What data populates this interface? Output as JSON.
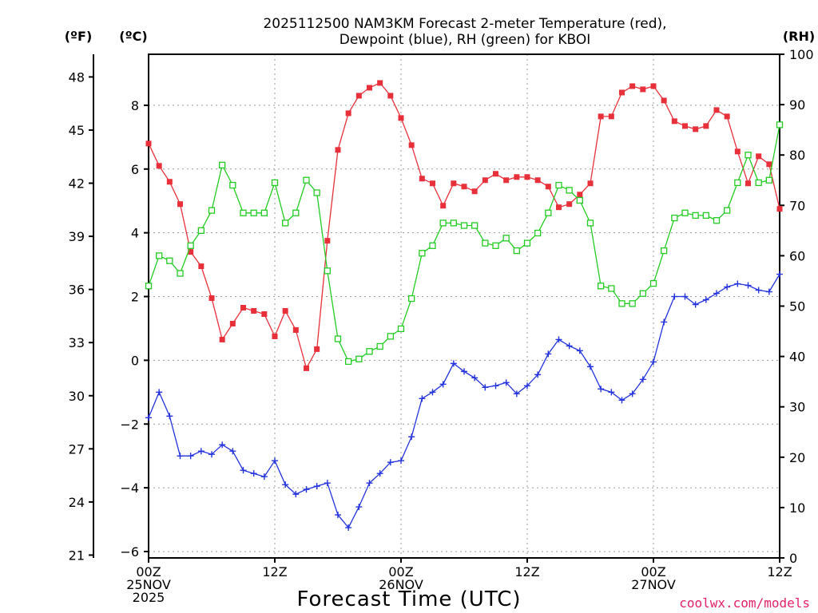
{
  "chart_data": {
    "type": "line",
    "title_lines": [
      "2025112500 NAM3KM Forecast 2-meter Temperature (red),",
      "Dewpoint (blue), RH (green) for KBOI"
    ],
    "xlabel": "Forecast Time (UTC)",
    "credit": "coolwx.com/models",
    "units": {
      "fahrenheit": "(ºF)",
      "celsius": "(ºC)",
      "rh": "(RH)"
    },
    "x_range": [
      0,
      60
    ],
    "x_ticks": [
      {
        "x": 0,
        "lines": [
          "00Z",
          "25NOV",
          "2025"
        ]
      },
      {
        "x": 12,
        "lines": [
          "12Z"
        ]
      },
      {
        "x": 24,
        "lines": [
          "00Z",
          "26NOV"
        ]
      },
      {
        "x": 36,
        "lines": [
          "12Z"
        ]
      },
      {
        "x": 48,
        "lines": [
          "00Z",
          "27NOV"
        ]
      },
      {
        "x": 60,
        "lines": [
          "12Z"
        ]
      }
    ],
    "celsius_axis": {
      "range": [
        -6.2,
        9.6
      ],
      "ticks": [
        "−6",
        "−4",
        "−2",
        "0",
        "2",
        "4",
        "6",
        "8"
      ],
      "tick_values": [
        -6,
        -4,
        -2,
        0,
        2,
        4,
        6,
        8
      ]
    },
    "fahrenheit_axis": {
      "ticks": [
        "21",
        "24",
        "27",
        "30",
        "33",
        "36",
        "39",
        "42",
        "45",
        "48"
      ],
      "tick_values": [
        21,
        24,
        27,
        30,
        33,
        36,
        39,
        42,
        45,
        48
      ]
    },
    "rh_axis": {
      "range": [
        0,
        100
      ],
      "ticks": [
        "0",
        "10",
        "20",
        "30",
        "40",
        "50",
        "60",
        "70",
        "80",
        "90",
        "100"
      ],
      "tick_values": [
        0,
        10,
        20,
        30,
        40,
        50,
        60,
        70,
        80,
        90,
        100
      ]
    },
    "series": [
      {
        "name": "2-meter Temperature",
        "axis": "celsius",
        "color": "#e8303a",
        "marker": "filled-square",
        "x": [
          0,
          1,
          2,
          3,
          4,
          5,
          6,
          7,
          8,
          9,
          10,
          11,
          12,
          13,
          14,
          15,
          16,
          17,
          18,
          19,
          20,
          21,
          22,
          23,
          24,
          25,
          26,
          27,
          28,
          29,
          30,
          31,
          32,
          33,
          34,
          35,
          36,
          37,
          38,
          39,
          40,
          41,
          42,
          43,
          44,
          45,
          46,
          47,
          48,
          49,
          50,
          51,
          52,
          53,
          54,
          55,
          56,
          57,
          58,
          59,
          60
        ],
        "values": [
          6.8,
          6.1,
          5.6,
          4.9,
          3.4,
          2.95,
          1.95,
          0.65,
          1.15,
          1.65,
          1.55,
          1.45,
          0.75,
          1.55,
          0.95,
          -0.25,
          0.35,
          3.75,
          6.6,
          7.75,
          8.3,
          8.55,
          8.7,
          8.3,
          7.6,
          6.75,
          5.7,
          5.55,
          4.85,
          5.55,
          5.45,
          5.3,
          5.65,
          5.85,
          5.65,
          5.75,
          5.75,
          5.65,
          5.45,
          4.8,
          4.9,
          5.2,
          5.55,
          7.65,
          7.65,
          8.4,
          8.6,
          8.5,
          8.6,
          8.15,
          7.5,
          7.35,
          7.25,
          7.35,
          7.85,
          7.65,
          6.55,
          5.55,
          6.4,
          6.15,
          4.75
        ]
      },
      {
        "name": "Dewpoint",
        "axis": "celsius",
        "color": "#2233dd",
        "marker": "plus",
        "x": [
          0,
          1,
          2,
          3,
          4,
          5,
          6,
          7,
          8,
          9,
          10,
          11,
          12,
          13,
          14,
          15,
          16,
          17,
          18,
          19,
          20,
          21,
          22,
          23,
          24,
          25,
          26,
          27,
          28,
          29,
          30,
          31,
          32,
          33,
          34,
          35,
          36,
          37,
          38,
          39,
          40,
          41,
          42,
          43,
          44,
          45,
          46,
          47,
          48,
          49,
          50,
          51,
          52,
          53,
          54,
          55,
          56,
          57,
          58,
          59,
          60
        ],
        "values": [
          -1.8,
          -1.0,
          -1.75,
          -3.0,
          -3.0,
          -2.85,
          -2.95,
          -2.65,
          -2.85,
          -3.45,
          -3.55,
          -3.65,
          -3.15,
          -3.9,
          -4.2,
          -4.05,
          -3.95,
          -3.85,
          -4.85,
          -5.25,
          -4.6,
          -3.85,
          -3.55,
          -3.2,
          -3.15,
          -2.4,
          -1.2,
          -1.0,
          -0.75,
          -0.1,
          -0.35,
          -0.55,
          -0.85,
          -0.8,
          -0.7,
          -1.05,
          -0.8,
          -0.45,
          0.2,
          0.65,
          0.45,
          0.3,
          -0.2,
          -0.9,
          -1.0,
          -1.25,
          -1.05,
          -0.6,
          -0.05,
          1.2,
          2.0,
          2.0,
          1.75,
          1.9,
          2.1,
          2.3,
          2.4,
          2.35,
          2.2,
          2.15,
          2.7
        ]
      },
      {
        "name": "RH",
        "axis": "rh",
        "color": "#22cc22",
        "marker": "open-square",
        "x": [
          0,
          1,
          2,
          3,
          4,
          5,
          6,
          7,
          8,
          9,
          10,
          11,
          12,
          13,
          14,
          15,
          16,
          17,
          18,
          19,
          20,
          21,
          22,
          23,
          24,
          25,
          26,
          27,
          28,
          29,
          30,
          31,
          32,
          33,
          34,
          35,
          36,
          37,
          38,
          39,
          40,
          41,
          42,
          43,
          44,
          45,
          46,
          47,
          48,
          49,
          50,
          51,
          52,
          53,
          54,
          55,
          56,
          57,
          58,
          59,
          60
        ],
        "values": [
          54,
          60,
          59,
          56.5,
          62,
          65,
          69,
          78,
          74,
          68.5,
          68.5,
          68.5,
          74.5,
          66.5,
          68.5,
          75,
          72.5,
          57,
          43.5,
          39,
          39.5,
          41,
          42,
          44,
          45.5,
          51.5,
          60.5,
          62,
          66.5,
          66.5,
          66,
          66,
          62.5,
          62,
          63.5,
          61,
          62.5,
          64.5,
          68.5,
          74,
          73,
          71,
          66.5,
          54,
          53.5,
          50.5,
          50.5,
          52.5,
          54.5,
          61,
          67.5,
          68.5,
          68,
          68,
          67,
          69,
          74.5,
          80,
          74.5,
          75,
          86
        ]
      }
    ]
  }
}
